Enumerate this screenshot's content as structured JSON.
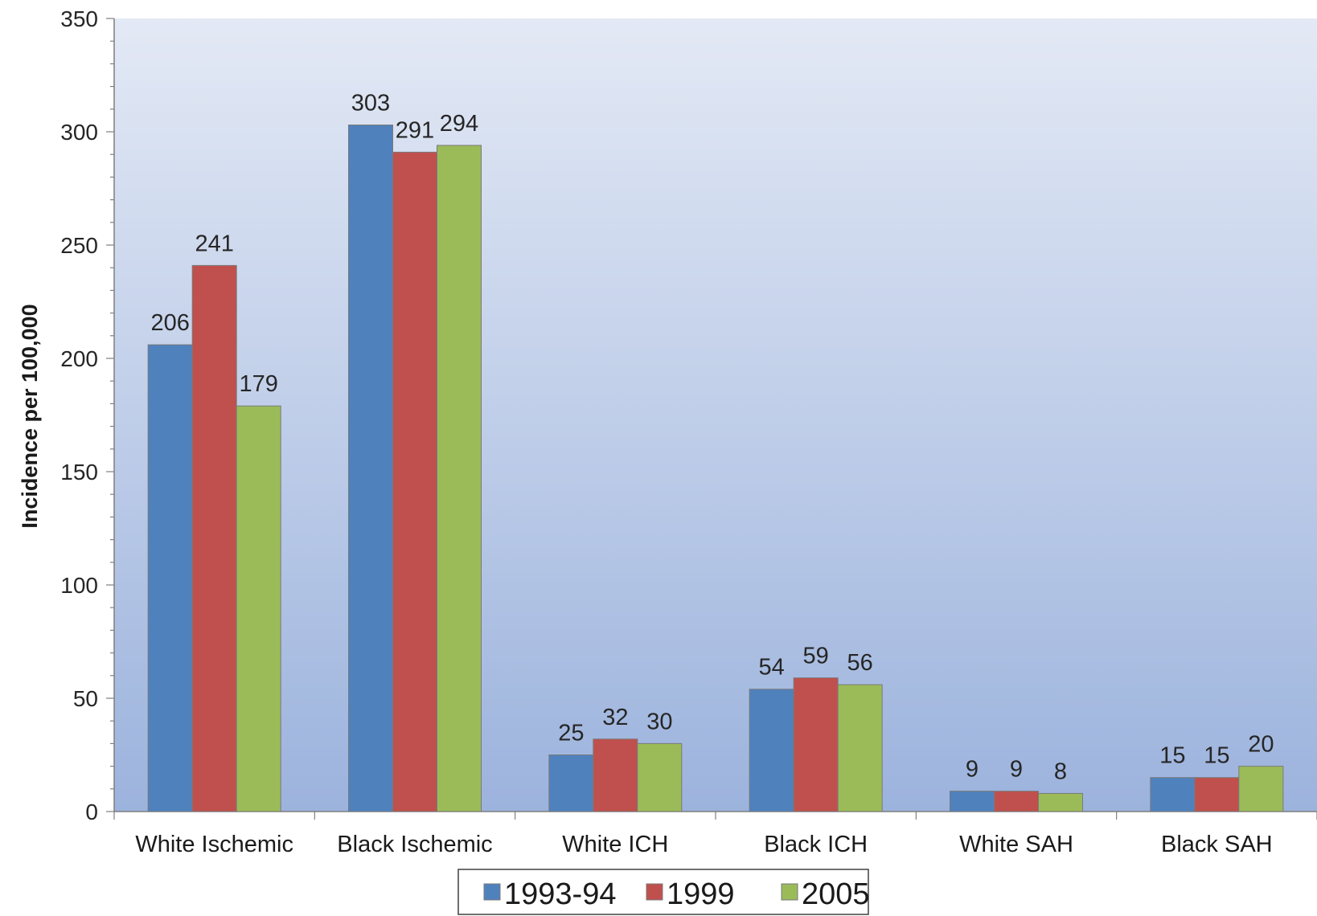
{
  "chart_data": {
    "type": "bar",
    "title": "",
    "xlabel": "",
    "ylabel": "Incidence per 100,000",
    "ylim": [
      0,
      350
    ],
    "yticks": [
      0,
      50,
      100,
      150,
      200,
      250,
      300,
      350
    ],
    "grid": false,
    "legend_position": "bottom",
    "categories": [
      "White Ischemic",
      "Black Ischemic",
      "White ICH",
      "Black ICH",
      "White SAH",
      "Black SAH"
    ],
    "series": [
      {
        "name": "1993-94",
        "color": "#4f81bd",
        "values": [
          206,
          303,
          25,
          54,
          9,
          15
        ]
      },
      {
        "name": "1999",
        "color": "#c0504d",
        "values": [
          241,
          291,
          32,
          59,
          9,
          15
        ]
      },
      {
        "name": "2005",
        "color": "#9bbb59",
        "values": [
          179,
          294,
          30,
          56,
          8,
          20
        ]
      }
    ]
  }
}
